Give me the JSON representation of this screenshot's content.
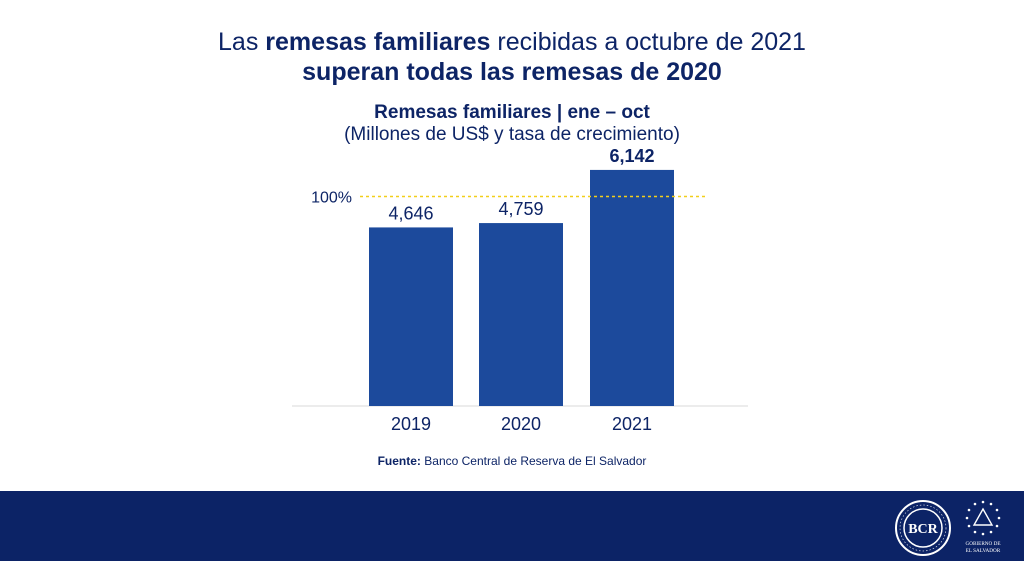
{
  "headline": {
    "line1_pre": "Las ",
    "line1_bold": "remesas familiares",
    "line1_post": " recibidas a octubre de 2021",
    "line2": "superan todas las remesas de 2020"
  },
  "chart_data": {
    "type": "bar",
    "title": "Remesas familiares | ene – oct",
    "subtitle": "(Millones de US$ y tasa de crecimiento)",
    "categories": [
      "2019",
      "2020",
      "2021"
    ],
    "values": [
      4646,
      4759,
      6142
    ],
    "value_labels": [
      "4,646",
      "4,759",
      "6,142"
    ],
    "ylim": [
      0,
      6400
    ],
    "bar_color": "#1c4a9c",
    "reference_line": {
      "label": "100%",
      "value": 5450,
      "color": "#f2cf1a",
      "style": "dotted"
    },
    "highlight_category": "2021",
    "grid": false
  },
  "source": {
    "label": "Fuente:",
    "text": " Banco Central de Reserva de El Salvador"
  },
  "footer": {
    "bg_color": "#0c2366",
    "bcr_logo_text": "BCR",
    "gob_logo_text": "GOBIERNO DE EL SALVADOR"
  }
}
